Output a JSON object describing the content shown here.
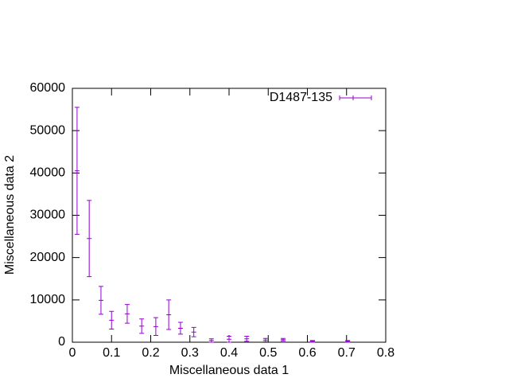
{
  "chart_data": {
    "type": "errorbar",
    "xlabel": "Miscellaneous data 1",
    "ylabel": "Miscellaneous data 2",
    "xlim": [
      0,
      0.8
    ],
    "xticks": [
      0,
      0.1,
      0.2,
      0.3,
      0.4,
      0.5,
      0.6,
      0.7,
      0.8
    ],
    "ylim": [
      0,
      60000
    ],
    "yticks": [
      0,
      10000,
      20000,
      30000,
      40000,
      50000,
      60000
    ],
    "legend": "top-right",
    "series": [
      {
        "name": "D1487-135",
        "color": "#9400d3",
        "x": [
          0.012,
          0.043,
          0.073,
          0.1,
          0.14,
          0.177,
          0.213,
          0.246,
          0.276,
          0.31,
          0.355,
          0.4,
          0.445,
          0.493,
          0.538,
          0.613,
          0.703
        ],
        "values": [
          40500,
          24500,
          9900,
          5200,
          6700,
          3800,
          3700,
          6500,
          3300,
          2400,
          400,
          700,
          800,
          500,
          600,
          200,
          200
        ],
        "errors": [
          15000,
          9000,
          3300,
          2100,
          2200,
          1700,
          2100,
          3500,
          1400,
          1100,
          400,
          700,
          600,
          400,
          300,
          200,
          200
        ]
      }
    ]
  }
}
